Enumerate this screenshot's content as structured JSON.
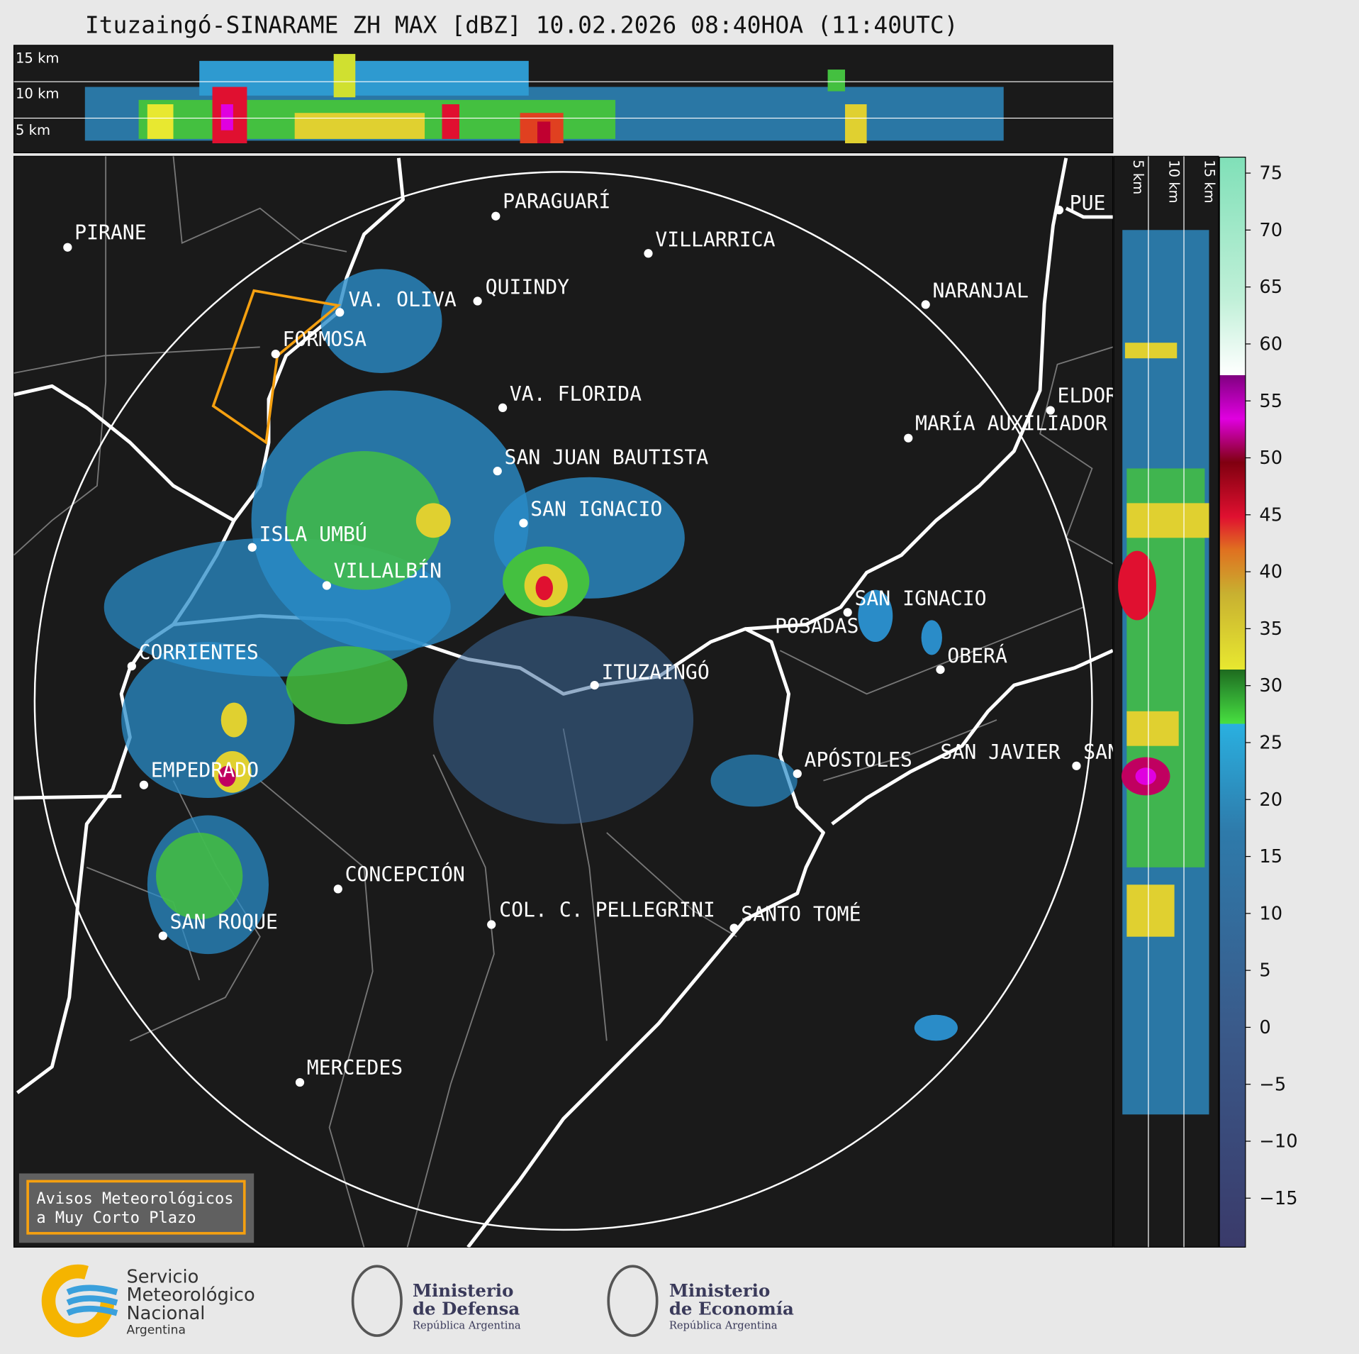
{
  "title": "Ituzaingó-SINARAME ZH MAX [dBZ] 10.02.2026 08:40HOA (11:40UTC)",
  "profile_top": {
    "labels": [
      "15 km",
      "10 km",
      "5 km"
    ]
  },
  "profile_side": {
    "labels": [
      "5 km",
      "10 km",
      "15 km"
    ]
  },
  "cities": [
    {
      "name": "PIRANE"
    },
    {
      "name": "PARAGUARÍ"
    },
    {
      "name": "VILLARRICA"
    },
    {
      "name": "QUIINDY"
    },
    {
      "name": "VA. OLIVA"
    },
    {
      "name": "FORMOSA"
    },
    {
      "name": "NARANJAL"
    },
    {
      "name": "VA. FLORIDA"
    },
    {
      "name": "ELDOR"
    },
    {
      "name": "MARÍA AUXILIADOR"
    },
    {
      "name": "SAN JUAN BAUTISTA"
    },
    {
      "name": "SAN IGNACIO"
    },
    {
      "name": "ISLA UMBÚ"
    },
    {
      "name": "VILLALBÍN"
    },
    {
      "name": "SAN IGNACIO"
    },
    {
      "name": "POSADAS"
    },
    {
      "name": "CORRIENTES"
    },
    {
      "name": "ITUZAINGÓ"
    },
    {
      "name": "OBERÁ"
    },
    {
      "name": "EMPEDRADO"
    },
    {
      "name": "APÓSTOLES"
    },
    {
      "name": "SAN JAVIER"
    },
    {
      "name": "SAN"
    },
    {
      "name": "PUE"
    },
    {
      "name": "CONCEPCIÓN"
    },
    {
      "name": "COL. C. PELLEGRINI"
    },
    {
      "name": "SANTO TOMÉ"
    },
    {
      "name": "SAN ROQUE"
    },
    {
      "name": "MERCEDES"
    }
  ],
  "colorbar": {
    "lim": [
      -19.3,
      76.4
    ],
    "ticks": [
      75,
      70,
      65,
      60,
      55,
      50,
      45,
      40,
      35,
      30,
      25,
      20,
      15,
      10,
      5,
      0,
      {
        "value": -5,
        "label": "−5"
      },
      {
        "value": -10,
        "label": "−10"
      },
      {
        "value": -15,
        "label": "−15"
      }
    ]
  },
  "warning_box": {
    "lines": [
      "Avisos Meteorológicos",
      "a Muy Corto Plazo"
    ]
  },
  "logos": {
    "smn": [
      "Servicio",
      "Meteorológico",
      "Nacional",
      "Argentina"
    ],
    "defensa": [
      "Ministerio",
      "de Defensa",
      "República Argentina"
    ],
    "economia": [
      "Ministerio",
      "de Economía",
      "República Argentina"
    ]
  }
}
